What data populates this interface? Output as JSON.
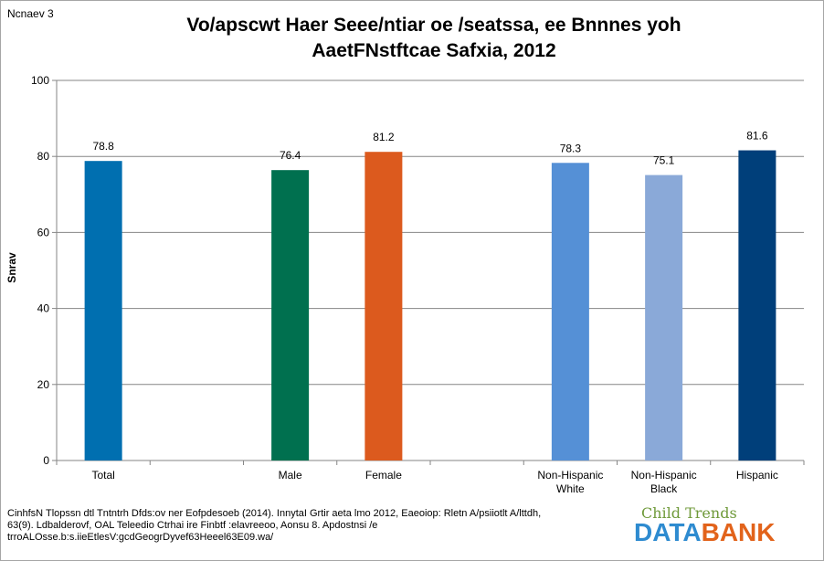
{
  "figure_label": "Ncnaev 3",
  "title_lines": [
    "Vo/apscwt Haer Seee/ntiar oe /seatssa, ee Bnnnes yoh",
    "AaetFNstftcae Safxia, 2012"
  ],
  "source_lines": [
    "CinhfsN Tlopssn dtl Tntntrh Dfds:ov ner Eofpdesoeb (2014). InnytaI Grtir aeta lmo 2012, Eaeoiop: Rletn A/psiiotlt A/lttdh,",
    "63(9). Ldbalderovf, OAL Teleedio Ctrhai ire Finbtf :elavreeoo, Aonsu 8. Apdostnsi /e",
    "trroALOsse.b:s.iieEtlesV:gcdGeogrDyvef63Heeel63E09.wa/"
  ],
  "logo": {
    "top": "Child Trends",
    "data": "DATA",
    "bank": "BANK"
  },
  "chart_data": {
    "type": "bar",
    "title": "Vo/apscwt Haer Seee/ntiar oe /seatssa, ee Bnnnes yoh AaetFNstftcae Safxia, 2012",
    "xlabel": "",
    "ylabel": "Snrav",
    "ylim": [
      0,
      100
    ],
    "yticks": [
      0,
      20,
      40,
      60,
      80,
      100
    ],
    "grid": true,
    "legend": "none",
    "categories": [
      [
        "Total"
      ],
      [
        ""
      ],
      [
        "Male"
      ],
      [
        "Female"
      ],
      [
        ""
      ],
      [
        "Non-Hispanic",
        "White"
      ],
      [
        "Non-Hispanic",
        "Black"
      ],
      [
        "Hispanic"
      ]
    ],
    "values": [
      78.8,
      null,
      76.4,
      81.2,
      null,
      78.3,
      75.1,
      81.6
    ],
    "data_labels": [
      "78.8",
      "",
      "76.4",
      "81.2",
      "",
      "78.3",
      "75.1",
      "81.6"
    ],
    "colors": [
      "#006fb0",
      null,
      "#00704f",
      "#dc5a1e",
      null,
      "#5590d6",
      "#8aa9d8",
      "#003f7a"
    ]
  }
}
